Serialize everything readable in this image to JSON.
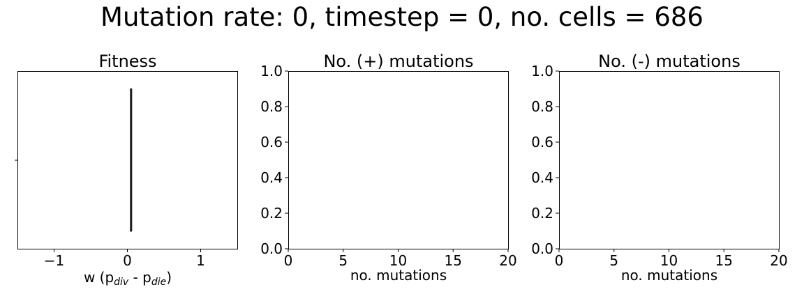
{
  "figure": {
    "suptitle": "Mutation rate: 0, timestep = 0, no. cells = 686"
  },
  "chart_data": [
    {
      "type": "violin",
      "title": "Fitness",
      "xlabel_parts": [
        "w (p",
        "div",
        " - p",
        "die",
        ")"
      ],
      "xlim": [
        -1.5,
        1.5
      ],
      "xticks": [
        -1,
        0,
        1
      ],
      "xtick_labels": [
        "−1",
        "0",
        "1"
      ],
      "yticks": [],
      "series": [
        {
          "x": 0.05,
          "spread": 0.01,
          "ymin": 0.1,
          "ymax": 0.9
        }
      ]
    },
    {
      "type": "bar",
      "title": "No. (+) mutations",
      "xlabel": "no. mutations",
      "xlim": [
        0,
        20
      ],
      "ylim": [
        0,
        1
      ],
      "xticks": [
        0,
        5,
        10,
        15,
        20
      ],
      "xtick_labels": [
        "0",
        "5",
        "10",
        "15",
        "20"
      ],
      "yticks": [
        0,
        0.2,
        0.4,
        0.6,
        0.8,
        1.0
      ],
      "ytick_labels": [
        "0.0",
        "0.2",
        "0.4",
        "0.6",
        "0.8",
        "1.0"
      ],
      "values": []
    },
    {
      "type": "bar",
      "title": "No. (-) mutations",
      "xlabel": "no. mutations",
      "xlim": [
        0,
        20
      ],
      "ylim": [
        0,
        1
      ],
      "xticks": [
        0,
        5,
        10,
        15,
        20
      ],
      "xtick_labels": [
        "0",
        "5",
        "10",
        "15",
        "20"
      ],
      "yticks": [
        0,
        0.2,
        0.4,
        0.6,
        0.8,
        1.0
      ],
      "ytick_labels": [
        "0.0",
        "0.2",
        "0.4",
        "0.6",
        "0.8",
        "1.0"
      ],
      "values": []
    }
  ]
}
